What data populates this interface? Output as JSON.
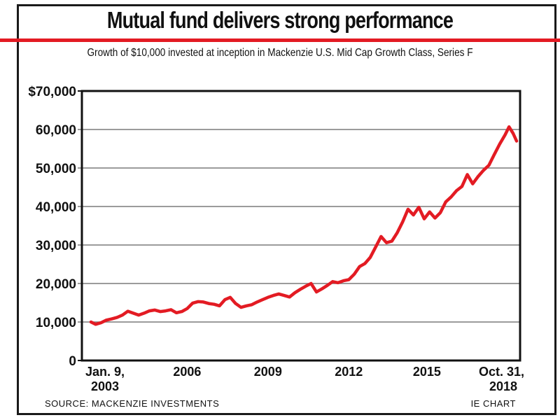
{
  "header": {
    "title": "Mutual fund delivers strong performance",
    "subtitle": "Growth of $10,000 invested at inception in Mackenzie U.S. Mid Cap Growth Class, Series F"
  },
  "footer": {
    "source": "SOURCE: MACKENZIE INVESTMENTS",
    "credit": "IE CHART"
  },
  "colors": {
    "line": "#e31b23",
    "accent_bar": "#e31b23",
    "grid": "#7a7a7a",
    "axis": "#111111"
  },
  "chart_data": {
    "type": "line",
    "title": "Mutual fund delivers strong performance",
    "subtitle": "Growth of $10,000 invested at inception in Mackenzie U.S. Mid Cap Growth Class, Series F",
    "xlabel": "",
    "ylabel": "",
    "xlim": [
      2003.03,
      2018.83
    ],
    "ylim": [
      0,
      70000
    ],
    "grid": true,
    "legend": "none",
    "y_ticks": [
      {
        "value": 0,
        "label": "0"
      },
      {
        "value": 10000,
        "label": "10,000"
      },
      {
        "value": 20000,
        "label": "20,000"
      },
      {
        "value": 30000,
        "label": "30,000"
      },
      {
        "value": 40000,
        "label": "40,000"
      },
      {
        "value": 50000,
        "label": "50,000"
      },
      {
        "value": 60000,
        "label": "60,000"
      },
      {
        "value": 70000,
        "label": "$70,000"
      }
    ],
    "x_ticks": [
      {
        "year": 2003.03,
        "lines": [
          "Jan. 9,",
          "2003"
        ]
      },
      {
        "year": 2006.6,
        "lines": [
          "2006"
        ]
      },
      {
        "year": 2009.6,
        "lines": [
          "2009"
        ]
      },
      {
        "year": 2012.6,
        "lines": [
          "2012"
        ]
      },
      {
        "year": 2015.5,
        "lines": [
          "2015"
        ]
      },
      {
        "year": 2018.83,
        "lines": [
          "Oct. 31,",
          "2018"
        ]
      }
    ],
    "series": [
      {
        "name": "Mackenzie U.S. Mid Cap Growth Class, Series F",
        "x": [
          2003.03,
          2003.2,
          2003.4,
          2003.6,
          2003.8,
          2004.0,
          2004.2,
          2004.4,
          2004.6,
          2004.8,
          2005.0,
          2005.2,
          2005.4,
          2005.6,
          2005.8,
          2006.0,
          2006.2,
          2006.4,
          2006.6,
          2006.8,
          2007.0,
          2007.2,
          2007.4,
          2007.6,
          2007.8,
          2008.0,
          2008.2,
          2008.4,
          2008.6,
          2008.8,
          2009.0,
          2009.2,
          2009.4,
          2009.6,
          2009.8,
          2010.0,
          2010.2,
          2010.4,
          2010.6,
          2010.8,
          2011.0,
          2011.2,
          2011.4,
          2011.6,
          2011.8,
          2012.0,
          2012.2,
          2012.4,
          2012.6,
          2012.8,
          2013.0,
          2013.2,
          2013.4,
          2013.6,
          2013.8,
          2014.0,
          2014.2,
          2014.4,
          2014.6,
          2014.8,
          2015.0,
          2015.2,
          2015.4,
          2015.6,
          2015.8,
          2016.0,
          2016.2,
          2016.4,
          2016.6,
          2016.8,
          2017.0,
          2017.2,
          2017.4,
          2017.6,
          2017.8,
          2018.0,
          2018.2,
          2018.4,
          2018.55,
          2018.7,
          2018.83
        ],
        "values": [
          10000,
          9400,
          9800,
          10500,
          10800,
          11200,
          11800,
          12800,
          12300,
          11800,
          12300,
          12900,
          13100,
          12700,
          12900,
          13200,
          12400,
          12700,
          13500,
          14900,
          15300,
          15200,
          14800,
          14600,
          14200,
          15800,
          16400,
          14800,
          13800,
          14200,
          14500,
          15200,
          15800,
          16400,
          16900,
          17300,
          16900,
          16500,
          17600,
          18500,
          19300,
          20000,
          17800,
          18600,
          19500,
          20500,
          20200,
          20700,
          21000,
          22400,
          24400,
          25200,
          26800,
          29500,
          32200,
          30600,
          31000,
          33200,
          36000,
          39300,
          37800,
          39800,
          36800,
          38600,
          37000,
          38400,
          41200,
          42500,
          44100,
          45200,
          48300,
          45900,
          47800,
          49400,
          50700,
          53500,
          56200,
          58600,
          60700,
          59000,
          57000
        ]
      }
    ]
  }
}
